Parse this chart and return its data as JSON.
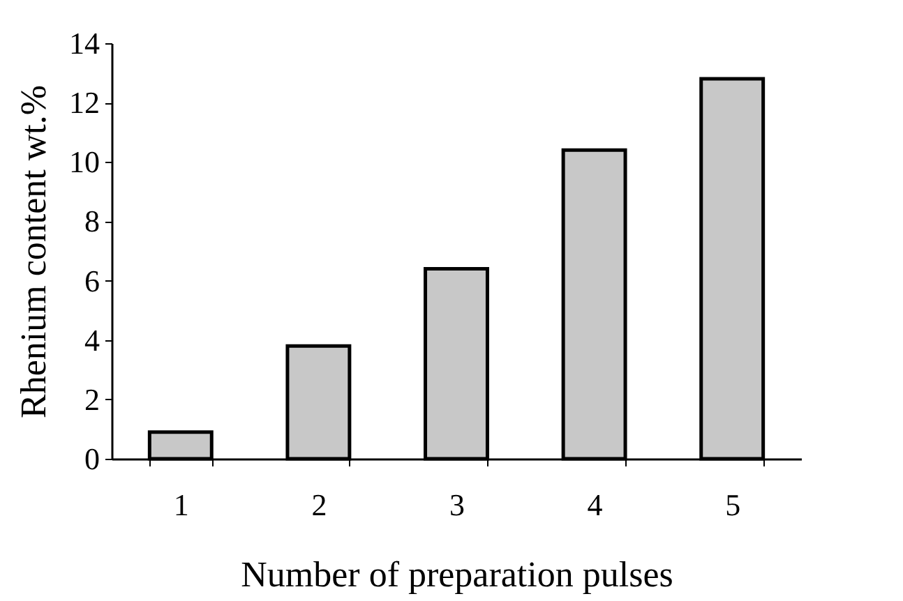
{
  "chart_data": {
    "type": "bar",
    "xlabel": "Number of preparation pulses",
    "ylabel": "Rhenium content wt.%",
    "categories": [
      "1",
      "2",
      "3",
      "4",
      "5"
    ],
    "values": [
      0.9,
      3.8,
      6.4,
      10.4,
      12.8
    ],
    "color": "#c8c8c8",
    "ylim": [
      0,
      14
    ],
    "yticks": [
      0,
      2,
      4,
      6,
      8,
      10,
      12,
      14
    ],
    "grid": false
  }
}
